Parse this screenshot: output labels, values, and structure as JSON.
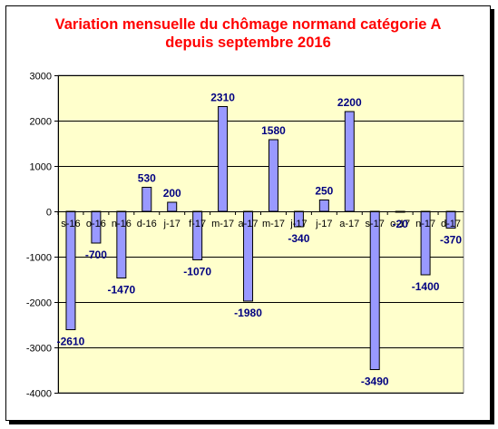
{
  "chart_data": {
    "type": "bar",
    "title_line1": "Variation mensuelle du chômage normand catégorie A",
    "title_line2": "depuis septembre 2016",
    "xlabel": "",
    "ylabel": "",
    "categories": [
      "s-16",
      "o-16",
      "n-16",
      "d-16",
      "j-17",
      "f-17",
      "m-17",
      "a-17",
      "m-17",
      "j-17",
      "j-17",
      "a-17",
      "s-17",
      "o-17",
      "n-17",
      "d-17"
    ],
    "values": [
      -2610,
      -700,
      -1470,
      530,
      200,
      -1070,
      2310,
      -1980,
      1580,
      -340,
      250,
      2200,
      -3490,
      -20,
      -1400,
      -370
    ],
    "data_labels": [
      "-2610",
      "-700",
      "-1470",
      "530",
      "200",
      "-1070",
      "2310",
      "-1980",
      "1580",
      "-340",
      "250",
      "2200",
      "-3490",
      "-20",
      "-1400",
      "-370"
    ],
    "ylim": [
      -4000,
      3000
    ],
    "yticks": [
      -4000,
      -3000,
      -2000,
      -1000,
      0,
      1000,
      2000,
      3000
    ],
    "ytick_labels": [
      "-4000",
      "-3000",
      "-2000",
      "-1000",
      "0",
      "1000",
      "2000",
      "3000"
    ],
    "grid": true,
    "legend": "none",
    "colors": {
      "plot_background": "#ffffcc",
      "bar_fill": "#9999ff",
      "bar_stroke": "#000000",
      "label_color": "#000080",
      "title_color": "#ff0000"
    }
  }
}
